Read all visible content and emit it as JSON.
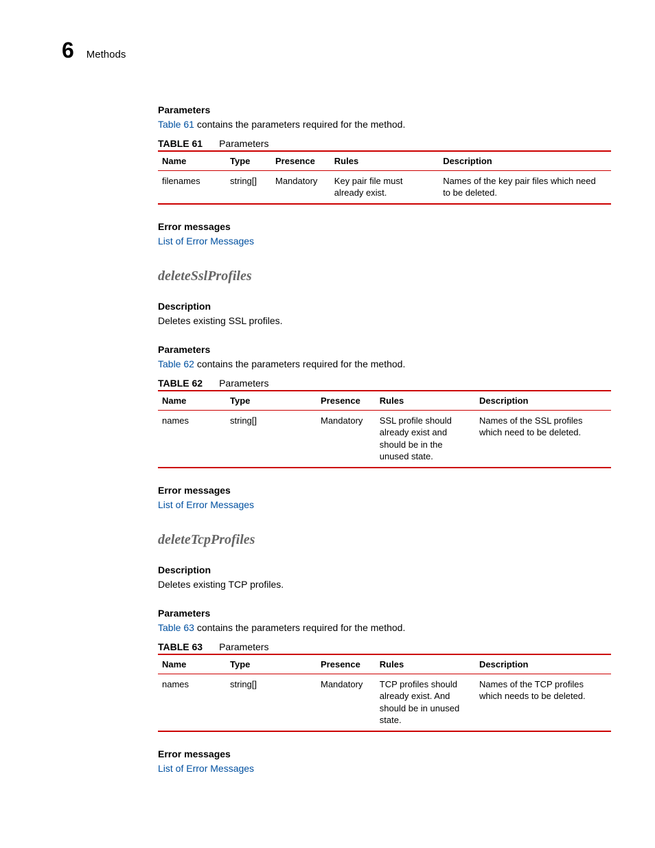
{
  "header": {
    "chapter_number": "6",
    "title": "Methods"
  },
  "colors": {
    "link": "#0050a0",
    "rule": "#cc0000",
    "heading_gray": "#666666",
    "text": "#000000",
    "background": "#ffffff"
  },
  "sections": [
    {
      "parameters_heading": "Parameters",
      "parameters_intro": {
        "link": "Table 61",
        "tail": " contains the parameters required for the method."
      },
      "table": {
        "label": "TABLE 61",
        "caption": "Parameters",
        "columns": [
          "Name",
          "Type",
          "Presence",
          "Rules",
          "Description"
        ],
        "col_widths": [
          "15%",
          "10%",
          "13%",
          "24%",
          "38%"
        ],
        "rows": [
          [
            "filenames",
            "string[]",
            "Mandatory",
            "Key pair file must already exist.",
            "Names of the key pair files which need to be deleted."
          ]
        ]
      },
      "error_heading": "Error messages",
      "error_link": "List of Error Messages"
    },
    {
      "method_title": "deleteSslProfiles",
      "description_heading": "Description",
      "description_body": "Deletes existing SSL profiles.",
      "parameters_heading": "Parameters",
      "parameters_intro": {
        "link": "Table 62",
        "tail": " contains the parameters required for the method."
      },
      "table": {
        "label": "TABLE 62",
        "caption": "Parameters",
        "columns": [
          "Name",
          "Type",
          "Presence",
          "Rules",
          "Description"
        ],
        "col_widths": [
          "15%",
          "20%",
          "13%",
          "22%",
          "30%"
        ],
        "rows": [
          [
            "names",
            "string[]",
            "Mandatory",
            "SSL profile should already exist and should be in the unused state.",
            "Names of the SSL profiles which need to be deleted."
          ]
        ]
      },
      "error_heading": "Error messages",
      "error_link": "List of Error Messages"
    },
    {
      "method_title": "deleteTcpProfiles",
      "description_heading": "Description",
      "description_body": "Deletes existing TCP profiles.",
      "parameters_heading": "Parameters",
      "parameters_intro": {
        "link": "Table 63",
        "tail": " contains the parameters required for the method."
      },
      "table": {
        "label": "TABLE 63",
        "caption": "Parameters",
        "columns": [
          "Name",
          "Type",
          "Presence",
          "Rules",
          "Description"
        ],
        "col_widths": [
          "15%",
          "20%",
          "13%",
          "22%",
          "30%"
        ],
        "rows": [
          [
            "names",
            "string[]",
            "Mandatory",
            "TCP profiles should already exist. And should be in unused state.",
            "Names of the TCP profiles which needs to be deleted."
          ]
        ]
      },
      "error_heading": "Error messages",
      "error_link": "List of Error Messages"
    }
  ]
}
